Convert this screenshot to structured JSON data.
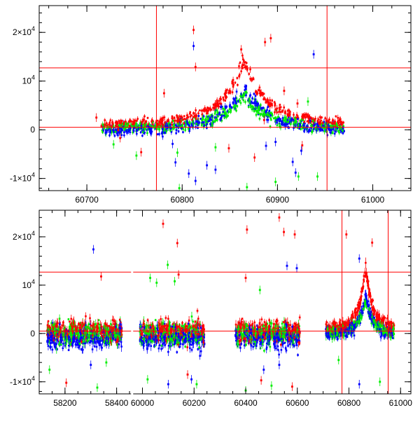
{
  "chart_data": [
    {
      "type": "scatter",
      "title": "",
      "xlabel": "",
      "ylabel": "",
      "xlim": [
        60650,
        61040
      ],
      "ylim": [
        -12500,
        25500
      ],
      "x_ticks": [
        {
          "value": 60700,
          "label": "60700"
        },
        {
          "value": 60800,
          "label": "60800"
        },
        {
          "value": 60900,
          "label": "60900"
        },
        {
          "value": 61000,
          "label": "61000"
        }
      ],
      "y_ticks": [
        {
          "value": -10000,
          "base": "-1×10",
          "exp": "4"
        },
        {
          "value": 0,
          "base": "0",
          "exp": ""
        },
        {
          "value": 10000,
          "base": "10",
          "exp": "4"
        },
        {
          "value": 20000,
          "base": "2×10",
          "exp": "4"
        }
      ],
      "reference_lines": {
        "vertical": [
          60773,
          60952
        ],
        "horizontal": [
          500,
          12700
        ]
      },
      "series_colors": {
        "red": "#ff0000",
        "blue": "#0000ff",
        "green": "#00ee00"
      },
      "outliers": [
        {
          "x": 60812,
          "y": 20500,
          "series": "red"
        },
        {
          "x": 60814,
          "y": 12900,
          "series": "red"
        },
        {
          "x": 60887,
          "y": 18000,
          "series": "red"
        },
        {
          "x": 60893,
          "y": 18800,
          "series": "red"
        },
        {
          "x": 60862,
          "y": 16500,
          "series": "red"
        },
        {
          "x": 60781,
          "y": 7500,
          "series": "red"
        },
        {
          "x": 60735,
          "y": -1700,
          "series": "red"
        },
        {
          "x": 60710,
          "y": 2500,
          "series": "red"
        },
        {
          "x": 60757,
          "y": -4600,
          "series": "red"
        },
        {
          "x": 60849,
          "y": -3800,
          "series": "red"
        },
        {
          "x": 60876,
          "y": -5700,
          "series": "red"
        },
        {
          "x": 60886,
          "y": 2000,
          "series": "red"
        },
        {
          "x": 60926,
          "y": -3200,
          "series": "red"
        },
        {
          "x": 60907,
          "y": 8000,
          "series": "red"
        },
        {
          "x": 60921,
          "y": 5400,
          "series": "red"
        },
        {
          "x": 60752,
          "y": -5300,
          "series": "green"
        },
        {
          "x": 60835,
          "y": -3600,
          "series": "green"
        },
        {
          "x": 60868,
          "y": -11800,
          "series": "green"
        },
        {
          "x": 60898,
          "y": -10700,
          "series": "green"
        },
        {
          "x": 60922,
          "y": -9600,
          "series": "green"
        },
        {
          "x": 60942,
          "y": -9600,
          "series": "green"
        },
        {
          "x": 60795,
          "y": -4700,
          "series": "green"
        },
        {
          "x": 60797,
          "y": -12000,
          "series": "green"
        },
        {
          "x": 60932,
          "y": 5800,
          "series": "green"
        },
        {
          "x": 60728,
          "y": -3000,
          "series": "green"
        },
        {
          "x": 60812,
          "y": 17200,
          "series": "blue"
        },
        {
          "x": 60938,
          "y": 15500,
          "series": "blue"
        },
        {
          "x": 60793,
          "y": -6700,
          "series": "blue"
        },
        {
          "x": 60807,
          "y": -9000,
          "series": "blue"
        },
        {
          "x": 60826,
          "y": -7300,
          "series": "blue"
        },
        {
          "x": 60835,
          "y": -8200,
          "series": "blue"
        },
        {
          "x": 60814,
          "y": -10500,
          "series": "blue"
        },
        {
          "x": 60888,
          "y": -3300,
          "series": "blue"
        },
        {
          "x": 60916,
          "y": -6600,
          "series": "blue"
        },
        {
          "x": 60919,
          "y": -8800,
          "series": "blue"
        },
        {
          "x": 60925,
          "y": -4300,
          "series": "blue"
        },
        {
          "x": 60898,
          "y": -2500,
          "series": "blue"
        },
        {
          "x": 60790,
          "y": -2900,
          "series": "blue"
        }
      ]
    },
    {
      "type": "scatter",
      "title": "",
      "xlabel": "",
      "ylabel": "",
      "xlim": [
        58100,
        61040
      ],
      "ylim": [
        -12500,
        25500
      ],
      "x_ticks": [
        {
          "value": 58200,
          "label": "58200"
        },
        {
          "value": 58400,
          "label": "58400"
        },
        {
          "value": 60000,
          "label": "60000"
        },
        {
          "value": 60200,
          "label": "60200"
        },
        {
          "value": 60400,
          "label": "60400"
        },
        {
          "value": 60600,
          "label": "60600"
        },
        {
          "value": 60800,
          "label": "60800"
        },
        {
          "value": 61000,
          "label": "61000"
        }
      ],
      "axis_break": {
        "from": 58460,
        "to": 59960
      },
      "y_ticks": [
        {
          "value": -10000,
          "base": "-1×10",
          "exp": "4"
        },
        {
          "value": 0,
          "base": "0",
          "exp": ""
        },
        {
          "value": 10000,
          "base": "10",
          "exp": "4"
        },
        {
          "value": 20000,
          "base": "2×10",
          "exp": "4"
        }
      ],
      "reference_lines": {
        "vertical": [
          60773,
          60952
        ],
        "horizontal": [
          500,
          12700
        ]
      },
      "series_colors": {
        "red": "#ff0000",
        "blue": "#0000ff",
        "green": "#00ee00"
      },
      "segments": [
        {
          "x_start": 58130,
          "x_end": 58420
        },
        {
          "x_start": 59990,
          "x_end": 60240
        },
        {
          "x_start": 60360,
          "x_end": 60610
        },
        {
          "x_start": 60710,
          "x_end": 60975
        }
      ],
      "outliers": [
        {
          "x": 60080,
          "y": 22700,
          "series": "red"
        },
        {
          "x": 60135,
          "y": 18700,
          "series": "red"
        },
        {
          "x": 60140,
          "y": 12200,
          "series": "red"
        },
        {
          "x": 60405,
          "y": 21500,
          "series": "red"
        },
        {
          "x": 60530,
          "y": 24000,
          "series": "red"
        },
        {
          "x": 60548,
          "y": 21000,
          "series": "red"
        },
        {
          "x": 60590,
          "y": 20500,
          "series": "red"
        },
        {
          "x": 60400,
          "y": 11500,
          "series": "red"
        },
        {
          "x": 58340,
          "y": 11800,
          "series": "red"
        },
        {
          "x": 60790,
          "y": 20500,
          "series": "red"
        },
        {
          "x": 60890,
          "y": 18800,
          "series": "red"
        },
        {
          "x": 58205,
          "y": -10200,
          "series": "red"
        },
        {
          "x": 60580,
          "y": -11000,
          "series": "red"
        },
        {
          "x": 60175,
          "y": -8500,
          "series": "red"
        },
        {
          "x": 60460,
          "y": -9700,
          "series": "red"
        },
        {
          "x": 58310,
          "y": 17400,
          "series": "blue"
        },
        {
          "x": 60598,
          "y": 13500,
          "series": "blue"
        },
        {
          "x": 60560,
          "y": 14000,
          "series": "blue"
        },
        {
          "x": 60840,
          "y": 15500,
          "series": "blue"
        },
        {
          "x": 60100,
          "y": -10500,
          "series": "blue"
        },
        {
          "x": 60190,
          "y": -9500,
          "series": "blue"
        },
        {
          "x": 60470,
          "y": -7500,
          "series": "blue"
        },
        {
          "x": 60530,
          "y": -6500,
          "series": "blue"
        },
        {
          "x": 60840,
          "y": -10500,
          "series": "blue"
        },
        {
          "x": 58300,
          "y": -6500,
          "series": "blue"
        },
        {
          "x": 60030,
          "y": 11500,
          "series": "green"
        },
        {
          "x": 60055,
          "y": 10500,
          "series": "green"
        },
        {
          "x": 60098,
          "y": 14200,
          "series": "green"
        },
        {
          "x": 60125,
          "y": 10800,
          "series": "green"
        },
        {
          "x": 60455,
          "y": 9000,
          "series": "green"
        },
        {
          "x": 58325,
          "y": -11200,
          "series": "green"
        },
        {
          "x": 58140,
          "y": -7500,
          "series": "green"
        },
        {
          "x": 58360,
          "y": -6000,
          "series": "green"
        },
        {
          "x": 60020,
          "y": -9500,
          "series": "green"
        },
        {
          "x": 60210,
          "y": -10500,
          "series": "green"
        },
        {
          "x": 60400,
          "y": -11800,
          "series": "green"
        },
        {
          "x": 60500,
          "y": -10800,
          "series": "green"
        },
        {
          "x": 60920,
          "y": -10000,
          "series": "green"
        },
        {
          "x": 60760,
          "y": -5500,
          "series": "green"
        }
      ]
    }
  ]
}
